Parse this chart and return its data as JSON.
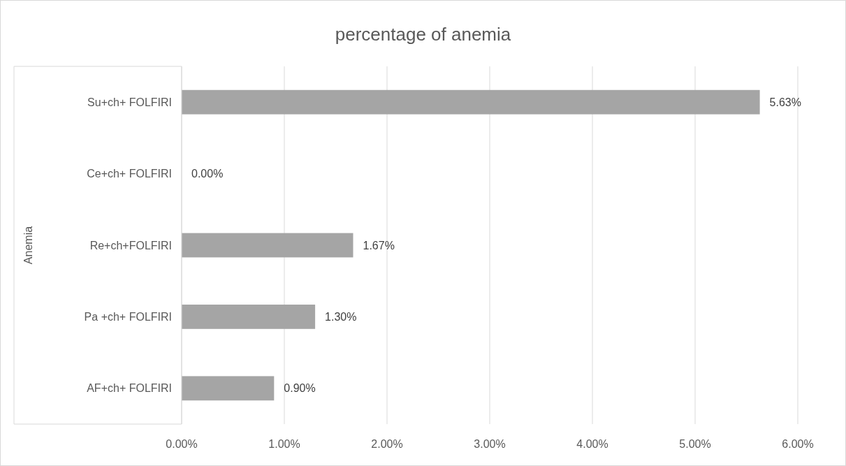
{
  "chart_data": {
    "type": "bar",
    "orientation": "horizontal",
    "title": "percentage of anemia",
    "ylabel": "Anemia",
    "categories": [
      "Su+ch+ FOLFIRI",
      "Ce+ch+ FOLFIRI",
      "Re+ch+FOLFIRI",
      "Pa +ch+ FOLFIRI",
      "AF+ch+ FOLFIRI"
    ],
    "values": [
      5.63,
      0,
      1.67,
      1.3,
      0.9
    ],
    "value_labels": [
      "5.63%",
      "0.00%",
      "1.67%",
      "1.30%",
      "0.90%"
    ],
    "color": "#a5a5a5",
    "xlim": [
      0,
      6
    ],
    "xticks": [
      {
        "value": 0,
        "label": "0.00%"
      },
      {
        "value": 1,
        "label": "1.00%"
      },
      {
        "value": 2,
        "label": "2.00%"
      },
      {
        "value": 3,
        "label": "3.00%"
      },
      {
        "value": 4,
        "label": "4.00%"
      },
      {
        "value": 5,
        "label": "5.00%"
      },
      {
        "value": 6,
        "label": "6.00%"
      }
    ],
    "grid": "x"
  }
}
